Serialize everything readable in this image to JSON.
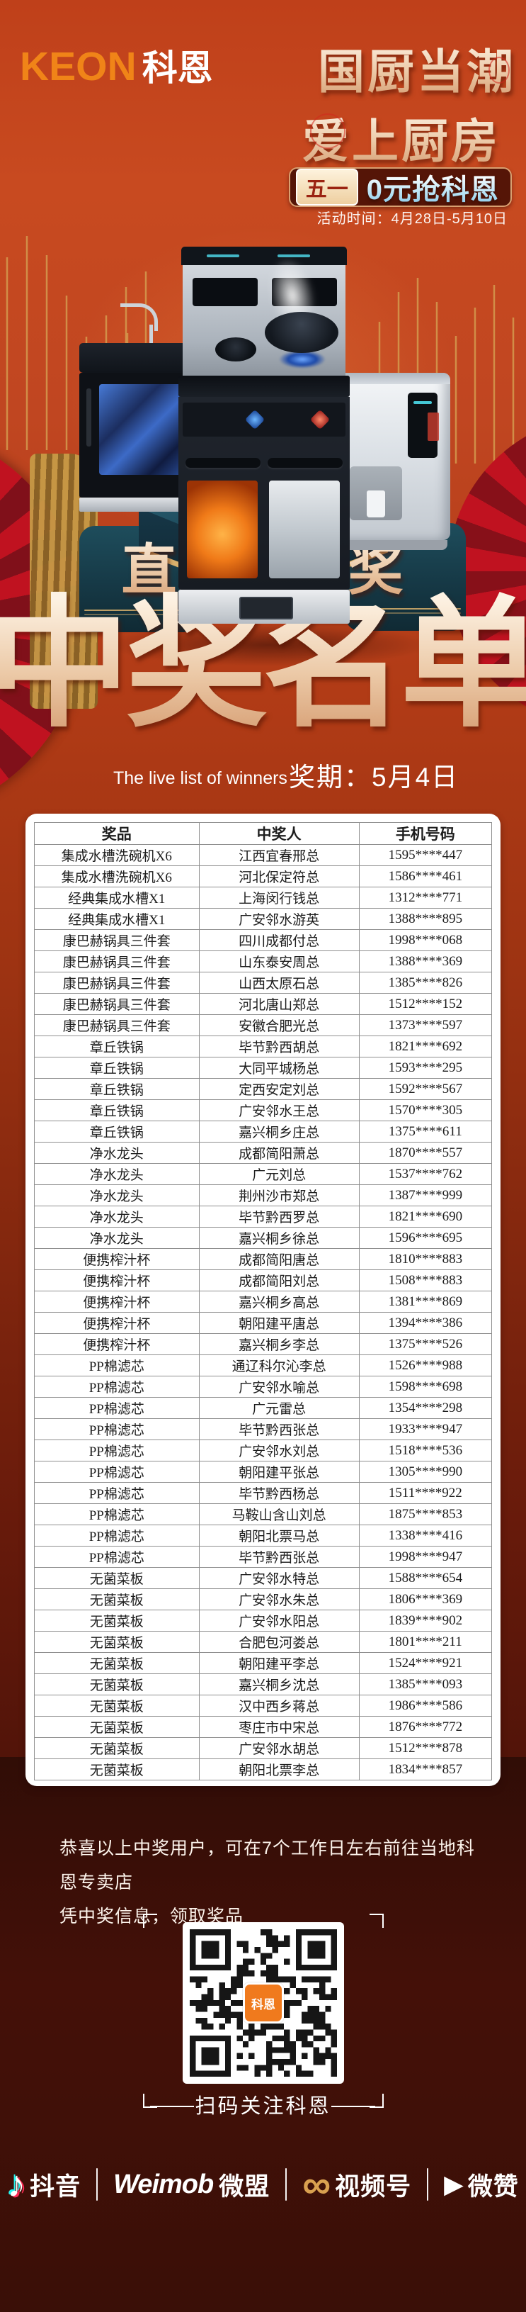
{
  "brand": {
    "logo_en": "KEON",
    "logo_cn": "科恩"
  },
  "header": {
    "slogan_line1": "国厨当潮",
    "slogan_line2": "爱上厨房",
    "badge_tag": "五一",
    "badge_text": "0元抢科恩",
    "activity_time": "活动时间：4月28日-5月10日"
  },
  "lottery": {
    "live_label": "直播大抽奖",
    "title": "中奖名单",
    "subtitle_en": "The live list of winners",
    "draw_date": "奖期：5月4日"
  },
  "table": {
    "headers": [
      "奖品",
      "中奖人",
      "手机号码"
    ],
    "rows": [
      [
        "集成水槽洗碗机X6",
        "江西宜春邢总",
        "1595****447"
      ],
      [
        "集成水槽洗碗机X6",
        "河北保定符总",
        "1586****461"
      ],
      [
        "经典集成水槽X1",
        "上海闵行钱总",
        "1312****771"
      ],
      [
        "经典集成水槽X1",
        "广安邻水游英",
        "1388****895"
      ],
      [
        "康巴赫锅具三件套",
        "四川成都付总",
        "1998****068"
      ],
      [
        "康巴赫锅具三件套",
        "山东泰安周总",
        "1388****369"
      ],
      [
        "康巴赫锅具三件套",
        "山西太原石总",
        "1385****826"
      ],
      [
        "康巴赫锅具三件套",
        "河北唐山郑总",
        "1512****152"
      ],
      [
        "康巴赫锅具三件套",
        "安徽合肥光总",
        "1373****597"
      ],
      [
        "章丘铁锅",
        "毕节黔西胡总",
        "1821****692"
      ],
      [
        "章丘铁锅",
        "大同平城杨总",
        "1593****295"
      ],
      [
        "章丘铁锅",
        "定西安定刘总",
        "1592****567"
      ],
      [
        "章丘铁锅",
        "广安邻水王总",
        "1570****305"
      ],
      [
        "章丘铁锅",
        "嘉兴桐乡庄总",
        "1375****611"
      ],
      [
        "净水龙头",
        "成都简阳萧总",
        "1870****557"
      ],
      [
        "净水龙头",
        "广元刘总",
        "1537****762"
      ],
      [
        "净水龙头",
        "荆州沙市郑总",
        "1387****999"
      ],
      [
        "净水龙头",
        "毕节黔西罗总",
        "1821****690"
      ],
      [
        "净水龙头",
        "嘉兴桐乡徐总",
        "1596****695"
      ],
      [
        "便携榨汁杯",
        "成都简阳唐总",
        "1810****883"
      ],
      [
        "便携榨汁杯",
        "成都简阳刘总",
        "1508****883"
      ],
      [
        "便携榨汁杯",
        "嘉兴桐乡高总",
        "1381****869"
      ],
      [
        "便携榨汁杯",
        "朝阳建平唐总",
        "1394****386"
      ],
      [
        "便携榨汁杯",
        "嘉兴桐乡李总",
        "1375****526"
      ],
      [
        "PP棉滤芯",
        "通辽科尔沁李总",
        "1526****988"
      ],
      [
        "PP棉滤芯",
        "广安邻水喻总",
        "1598****698"
      ],
      [
        "PP棉滤芯",
        "广元雷总",
        "1354****298"
      ],
      [
        "PP棉滤芯",
        "毕节黔西张总",
        "1933****947"
      ],
      [
        "PP棉滤芯",
        "广安邻水刘总",
        "1518****536"
      ],
      [
        "PP棉滤芯",
        "朝阳建平张总",
        "1305****990"
      ],
      [
        "PP棉滤芯",
        "毕节黔西杨总",
        "1511****922"
      ],
      [
        "PP棉滤芯",
        "马鞍山含山刘总",
        "1875****853"
      ],
      [
        "PP棉滤芯",
        "朝阳北票马总",
        "1338****416"
      ],
      [
        "PP棉滤芯",
        "毕节黔西张总",
        "1998****947"
      ],
      [
        "无菌菜板",
        "广安邻水特总",
        "1588****654"
      ],
      [
        "无菌菜板",
        "广安邻水朱总",
        "1806****369"
      ],
      [
        "无菌菜板",
        "广安邻水阳总",
        "1839****902"
      ],
      [
        "无菌菜板",
        "合肥包河娄总",
        "1801****211"
      ],
      [
        "无菌菜板",
        "朝阳建平李总",
        "1524****921"
      ],
      [
        "无菌菜板",
        "嘉兴桐乡沈总",
        "1385****093"
      ],
      [
        "无菌菜板",
        "汉中西乡蒋总",
        "1986****586"
      ],
      [
        "无菌菜板",
        "枣庄市中宋总",
        "1876****772"
      ],
      [
        "无菌菜板",
        "广安邻水胡总",
        "1512****878"
      ],
      [
        "无菌菜板",
        "朝阳北票李总",
        "1834****857"
      ]
    ]
  },
  "notice": {
    "line1": "恭喜以上中奖用户，可在7个工作日左右前往当地科恩专卖店",
    "line2": "凭中奖信息，领取奖品"
  },
  "qr": {
    "caption": "扫码关注科恩",
    "center_logo": "科恩"
  },
  "footer": {
    "platforms": [
      {
        "label": "抖音"
      },
      {
        "label_en": "Weimob",
        "label": "微盟"
      },
      {
        "label": "视频号"
      },
      {
        "label": "微赞"
      }
    ]
  },
  "colors": {
    "accent_orange": "#f08418",
    "gold_text": "#eccaa8",
    "badge_blue": "#9fd4ee",
    "podium_teal": "#1d4a57",
    "fan_red": "#c01220"
  }
}
